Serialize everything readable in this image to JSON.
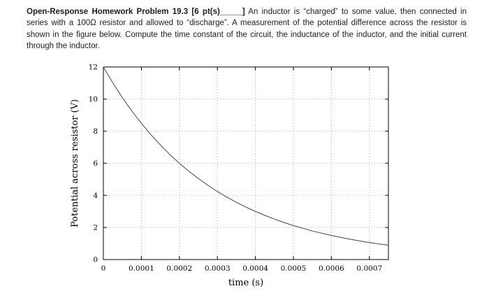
{
  "page": {
    "background": "#ffffff"
  },
  "problem": {
    "title_bold": "Open-Response Homework Problem 19.3 [6 pt(s)_____]",
    "body": " An inductor is “charged” to some value, then connected in series with a 100Ω resistor and allowed to “discharge”. A measurement of the potential difference across the resistor is shown in the figure below. Compute the time constant of the circuit, the inductance of the inductor, and the initial current through the inductor."
  },
  "chart_data": {
    "type": "line",
    "title": "",
    "xlabel": "time (s)",
    "ylabel": "Potential across resistor (V)",
    "xlim": [
      0,
      0.00075
    ],
    "ylim": [
      0,
      12
    ],
    "x_ticks": [
      0,
      0.0001,
      0.0002,
      0.0003,
      0.0004,
      0.0005,
      0.0006,
      0.0007
    ],
    "x_tick_labels": [
      "0",
      "0.0001",
      "0.0002",
      "0.0003",
      "0.0004",
      "0.0005",
      "0.0006",
      "0.0007"
    ],
    "y_ticks": [
      0,
      2,
      4,
      6,
      8,
      10,
      12
    ],
    "y_tick_labels": [
      "0",
      "2",
      "4",
      "6",
      "8",
      "10",
      "12"
    ],
    "grid": true,
    "legend": false,
    "frame_color": "#000000",
    "grid_color": "#aaaaaa",
    "curve_color": "#444444",
    "series": [
      {
        "x": [
          0,
          2.5e-05,
          5e-05,
          7.5e-05,
          0.0001,
          0.000125,
          0.00015,
          0.000175,
          0.0002,
          0.000225,
          0.00025,
          0.000275,
          0.0003,
          0.000325,
          0.00035,
          0.000375,
          0.0004,
          0.000425,
          0.00045,
          0.000475,
          0.0005,
          0.00055,
          0.0006,
          0.00065,
          0.0007,
          0.00075
        ],
        "y": [
          12.0,
          11.0,
          10.09,
          9.25,
          8.49,
          7.78,
          7.14,
          6.54,
          6.0,
          5.5,
          5.05,
          4.63,
          4.24,
          3.89,
          3.57,
          3.27,
          3.0,
          2.75,
          2.52,
          2.31,
          2.12,
          1.78,
          1.5,
          1.26,
          1.06,
          0.89
        ]
      }
    ]
  }
}
